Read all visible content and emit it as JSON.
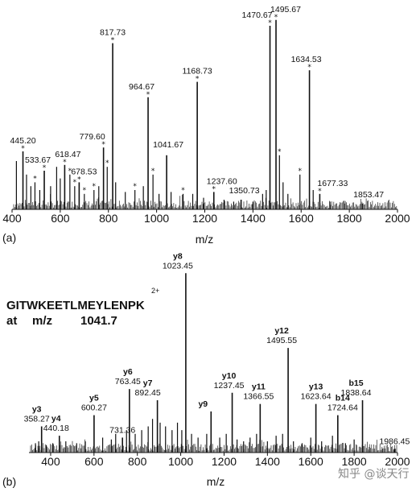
{
  "watermark": "知乎 @谈天行",
  "chart_data": [
    {
      "type": "bar",
      "panel_label": "(a)",
      "xlabel": "m/z",
      "xlim": [
        400,
        2000
      ],
      "xticks": [
        "400",
        "600",
        "800",
        "1000",
        "1200",
        "1400",
        "1600",
        "1800",
        "2000"
      ],
      "ylim": [
        0,
        100
      ],
      "peaks": [
        {
          "x": 445.2,
          "y": 30,
          "label": "445.20",
          "star": true
        },
        {
          "x": 533.67,
          "y": 20,
          "label": "533.67",
          "star": true
        },
        {
          "x": 618.47,
          "y": 23,
          "label": "618.47",
          "star": true
        },
        {
          "x": 678.53,
          "y": 14,
          "label": "678.53",
          "star": true
        },
        {
          "x": 779.6,
          "y": 32,
          "label": "779.60",
          "star": true
        },
        {
          "x": 817.73,
          "y": 86,
          "label": "817.73",
          "star": true
        },
        {
          "x": 964.67,
          "y": 58,
          "label": "964.67",
          "star": true
        },
        {
          "x": 1041.67,
          "y": 28,
          "label": "1041.67",
          "star": false
        },
        {
          "x": 1168.73,
          "y": 66,
          "label": "1168.73",
          "star": true
        },
        {
          "x": 1237.6,
          "y": 9,
          "label": "1237.60",
          "star": true
        },
        {
          "x": 1350.73,
          "y": 5,
          "label": "1350.73",
          "star": false
        },
        {
          "x": 1470.67,
          "y": 95,
          "label": "1470.67",
          "star": true
        },
        {
          "x": 1495.67,
          "y": 98,
          "label": "1495.67",
          "star": true
        },
        {
          "x": 1634.53,
          "y": 72,
          "label": "1634.53",
          "star": true
        },
        {
          "x": 1677.33,
          "y": 8,
          "label": "1677.33",
          "star": true
        },
        {
          "x": 1853.47,
          "y": 3,
          "label": "1853.47",
          "star": false
        }
      ],
      "minor_peaks": [
        {
          "x": 418,
          "y": 25
        },
        {
          "x": 460,
          "y": 18
        },
        {
          "x": 478,
          "y": 12
        },
        {
          "x": 495,
          "y": 14,
          "star": true
        },
        {
          "x": 515,
          "y": 10
        },
        {
          "x": 560,
          "y": 12
        },
        {
          "x": 585,
          "y": 22
        },
        {
          "x": 600,
          "y": 16
        },
        {
          "x": 640,
          "y": 18,
          "star": true
        },
        {
          "x": 660,
          "y": 12,
          "star": true
        },
        {
          "x": 700,
          "y": 8,
          "star": true
        },
        {
          "x": 740,
          "y": 10,
          "star": true
        },
        {
          "x": 760,
          "y": 12
        },
        {
          "x": 795,
          "y": 22,
          "star": true
        },
        {
          "x": 830,
          "y": 14
        },
        {
          "x": 870,
          "y": 9
        },
        {
          "x": 910,
          "y": 10,
          "star": true
        },
        {
          "x": 945,
          "y": 12
        },
        {
          "x": 985,
          "y": 18,
          "star": true
        },
        {
          "x": 1010,
          "y": 8
        },
        {
          "x": 1060,
          "y": 9
        },
        {
          "x": 1110,
          "y": 8,
          "star": true
        },
        {
          "x": 1150,
          "y": 8
        },
        {
          "x": 1195,
          "y": 6
        },
        {
          "x": 1280,
          "y": 5
        },
        {
          "x": 1320,
          "y": 4
        },
        {
          "x": 1400,
          "y": 4
        },
        {
          "x": 1440,
          "y": 8
        },
        {
          "x": 1455,
          "y": 10
        },
        {
          "x": 1510,
          "y": 28,
          "star": true
        },
        {
          "x": 1525,
          "y": 14
        },
        {
          "x": 1545,
          "y": 8
        },
        {
          "x": 1595,
          "y": 18,
          "star": true
        },
        {
          "x": 1650,
          "y": 10
        },
        {
          "x": 1720,
          "y": 4
        },
        {
          "x": 1780,
          "y": 3
        }
      ]
    },
    {
      "type": "bar",
      "panel_label": "(b)",
      "xlabel": "m/z",
      "xlim": [
        300,
        2000
      ],
      "xticks": [
        "400",
        "600",
        "800",
        "1000",
        "1200",
        "1400",
        "1600",
        "1800",
        "2000"
      ],
      "ylim": [
        0,
        100
      ],
      "peptide": "GITWKEETLMEYLENPK",
      "precursor_prefix": "at",
      "precursor_mz_label": "m/z",
      "precursor_mz": "1041.7",
      "charge": "2+",
      "peaks": [
        {
          "x": 358.27,
          "y": 14,
          "ion": "y3",
          "label": "358.27"
        },
        {
          "x": 440.18,
          "y": 9,
          "ion": "y4",
          "label": "440.18"
        },
        {
          "x": 600.27,
          "y": 20,
          "ion": "y5",
          "label": "600.27"
        },
        {
          "x": 731.36,
          "y": 8,
          "ion": "",
          "label": "731.36"
        },
        {
          "x": 763.45,
          "y": 34,
          "ion": "y6",
          "label": "763.45"
        },
        {
          "x": 892.45,
          "y": 28,
          "ion": "y7",
          "label": "892.45"
        },
        {
          "x": 1023.45,
          "y": 96,
          "ion": "y8",
          "label": "1023.45"
        },
        {
          "x": 1140,
          "y": 22,
          "ion": "y9",
          "label": ""
        },
        {
          "x": 1237.45,
          "y": 32,
          "ion": "y10",
          "label": "1237.45"
        },
        {
          "x": 1366.55,
          "y": 26,
          "ion": "y11",
          "label": "1366.55"
        },
        {
          "x": 1495.55,
          "y": 56,
          "ion": "y12",
          "label": "1495.55"
        },
        {
          "x": 1623.64,
          "y": 26,
          "ion": "y13",
          "label": "1623.64"
        },
        {
          "x": 1724.64,
          "y": 20,
          "ion": "b14",
          "label": "1724.64"
        },
        {
          "x": 1838.64,
          "y": 28,
          "ion": "b15",
          "label": "1838.64"
        },
        {
          "x": 1986.45,
          "y": 2,
          "ion": "",
          "label": "1986.45"
        }
      ],
      "minor_peaks": [
        {
          "x": 330,
          "y": 5
        },
        {
          "x": 345,
          "y": 6
        },
        {
          "x": 380,
          "y": 4
        },
        {
          "x": 410,
          "y": 5
        },
        {
          "x": 470,
          "y": 6
        },
        {
          "x": 520,
          "y": 5
        },
        {
          "x": 560,
          "y": 6
        },
        {
          "x": 640,
          "y": 8
        },
        {
          "x": 680,
          "y": 7
        },
        {
          "x": 700,
          "y": 10
        },
        {
          "x": 750,
          "y": 12
        },
        {
          "x": 790,
          "y": 10
        },
        {
          "x": 820,
          "y": 12
        },
        {
          "x": 850,
          "y": 14
        },
        {
          "x": 870,
          "y": 18
        },
        {
          "x": 905,
          "y": 16
        },
        {
          "x": 930,
          "y": 14
        },
        {
          "x": 960,
          "y": 12
        },
        {
          "x": 985,
          "y": 16
        },
        {
          "x": 1005,
          "y": 12
        },
        {
          "x": 1050,
          "y": 10
        },
        {
          "x": 1080,
          "y": 8
        },
        {
          "x": 1120,
          "y": 10
        },
        {
          "x": 1180,
          "y": 8
        },
        {
          "x": 1210,
          "y": 10
        },
        {
          "x": 1260,
          "y": 7
        },
        {
          "x": 1290,
          "y": 6
        },
        {
          "x": 1320,
          "y": 8
        },
        {
          "x": 1350,
          "y": 10
        },
        {
          "x": 1400,
          "y": 6
        },
        {
          "x": 1440,
          "y": 9
        },
        {
          "x": 1470,
          "y": 10
        },
        {
          "x": 1520,
          "y": 6
        },
        {
          "x": 1560,
          "y": 5
        },
        {
          "x": 1600,
          "y": 8
        },
        {
          "x": 1650,
          "y": 6
        },
        {
          "x": 1700,
          "y": 9
        },
        {
          "x": 1760,
          "y": 5
        },
        {
          "x": 1800,
          "y": 7
        },
        {
          "x": 1870,
          "y": 3
        },
        {
          "x": 1930,
          "y": 2
        }
      ]
    }
  ]
}
